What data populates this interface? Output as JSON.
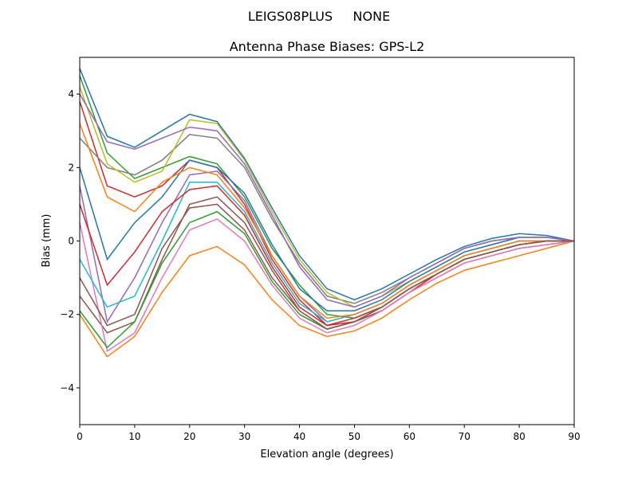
{
  "chart_data": {
    "type": "line",
    "suptitle": "LEIGS08PLUS     NONE",
    "title": "Antenna Phase Biases: GPS-L2",
    "xlabel": "Elevation angle (degrees)",
    "ylabel": "Bias (mm)",
    "xlim": [
      0,
      90
    ],
    "ylim": [
      -5,
      5
    ],
    "xticks": [
      0,
      10,
      20,
      30,
      40,
      50,
      60,
      70,
      80,
      90
    ],
    "yticks": [
      -4,
      -2,
      0,
      2,
      4
    ],
    "ytick_labels": [
      "−4",
      "−2",
      "0",
      "2",
      "4"
    ],
    "grid": false,
    "x": [
      0,
      5,
      10,
      15,
      20,
      25,
      30,
      35,
      40,
      45,
      50,
      55,
      60,
      65,
      70,
      75,
      80,
      85,
      90
    ],
    "colors": [
      "#1f77b4",
      "#ff7f0e",
      "#2ca02c",
      "#d62728",
      "#9467bd",
      "#8c564b",
      "#e377c2",
      "#7f7f7f",
      "#bcbd22",
      "#17becf"
    ],
    "series": [
      {
        "values": [
          4.7,
          2.85,
          2.55,
          3.0,
          3.45,
          3.25,
          2.25,
          0.9,
          -0.4,
          -1.3,
          -1.6,
          -1.3,
          -0.9,
          -0.5,
          -0.15,
          0.07,
          0.2,
          0.15,
          0
        ]
      },
      {
        "values": [
          -2,
          -3.15,
          -2.6,
          -1.4,
          -0.4,
          -0.15,
          -0.65,
          -1.6,
          -2.3,
          -2.6,
          -2.45,
          -2.1,
          -1.6,
          -1.15,
          -0.8,
          -0.6,
          -0.4,
          -0.2,
          0
        ]
      },
      {
        "values": [
          4.5,
          2.4,
          1.7,
          2.0,
          2.3,
          2.1,
          1.2,
          -0.2,
          -1.2,
          -2.0,
          -2.1,
          -1.8,
          -1.3,
          -0.9,
          -0.5,
          -0.3,
          -0.1,
          0.0,
          0
        ]
      },
      {
        "values": [
          3.8,
          1.5,
          1.2,
          1.5,
          2.2,
          2.0,
          1.0,
          -0.5,
          -1.6,
          -2.3,
          -2.2,
          -1.9,
          -1.4,
          -0.9,
          -0.5,
          -0.3,
          -0.1,
          0,
          0
        ]
      },
      {
        "values": [
          1.5,
          -2.2,
          -1.0,
          0.5,
          1.8,
          1.9,
          1.1,
          -0.4,
          -1.5,
          -2.2,
          -2.0,
          -1.7,
          -1.2,
          -0.8,
          -0.4,
          -0.2,
          0,
          0,
          0
        ]
      },
      {
        "values": [
          -1.5,
          -2.5,
          -2.2,
          -0.5,
          1.0,
          1.2,
          0.5,
          -0.8,
          -1.9,
          -2.4,
          -2.2,
          -1.9,
          -1.4,
          -1.0,
          -0.6,
          -0.4,
          -0.2,
          -0.1,
          0
        ]
      },
      {
        "values": [
          0.5,
          -3.0,
          -2.5,
          -1.0,
          0.3,
          0.6,
          0.0,
          -1.2,
          -2.1,
          -2.5,
          -2.3,
          -1.9,
          -1.4,
          -1.0,
          -0.6,
          -0.4,
          -0.2,
          -0.1,
          0
        ]
      },
      {
        "values": [
          2.8,
          2.0,
          1.8,
          2.2,
          2.9,
          2.8,
          2.0,
          0.6,
          -0.6,
          -1.5,
          -1.7,
          -1.4,
          -1.0,
          -0.6,
          -0.2,
          0.0,
          0.1,
          0.1,
          0
        ]
      },
      {
        "values": [
          4.2,
          2.1,
          1.6,
          1.9,
          3.3,
          3.2,
          2.2,
          0.8,
          -0.5,
          -1.4,
          -1.8,
          -1.5,
          -1.1,
          -0.7,
          -0.3,
          -0.1,
          0.1,
          0.1,
          0
        ]
      },
      {
        "values": [
          -0.5,
          -1.8,
          -1.5,
          0.0,
          1.6,
          1.6,
          0.8,
          -0.6,
          -1.7,
          -2.2,
          -2.0,
          -1.7,
          -1.2,
          -0.8,
          -0.4,
          -0.2,
          0,
          0,
          0
        ]
      },
      {
        "values": [
          2.0,
          -0.5,
          0.5,
          1.2,
          2.2,
          2.0,
          1.3,
          -0.1,
          -1.3,
          -1.9,
          -1.9,
          -1.6,
          -1.1,
          -0.7,
          -0.3,
          -0.1,
          0.1,
          0.1,
          0
        ]
      },
      {
        "values": [
          3.2,
          1.2,
          0.8,
          1.6,
          2.0,
          1.8,
          0.9,
          -0.4,
          -1.5,
          -2.1,
          -2.0,
          -1.7,
          -1.2,
          -0.8,
          -0.4,
          -0.2,
          0,
          0,
          0
        ]
      },
      {
        "values": [
          -1.9,
          -2.9,
          -2.2,
          -0.6,
          0.5,
          0.8,
          0.2,
          -1.1,
          -2.0,
          -2.4,
          -2.2,
          -1.8,
          -1.3,
          -0.9,
          -0.5,
          -0.3,
          -0.1,
          0,
          0
        ]
      },
      {
        "values": [
          1.0,
          -1.2,
          -0.3,
          0.8,
          1.4,
          1.5,
          0.7,
          -0.7,
          -1.8,
          -2.3,
          -2.1,
          -1.8,
          -1.3,
          -0.9,
          -0.5,
          -0.3,
          -0.1,
          0,
          0
        ]
      },
      {
        "values": [
          4.0,
          2.7,
          2.5,
          2.8,
          3.1,
          3.0,
          2.1,
          0.7,
          -0.7,
          -1.6,
          -1.8,
          -1.5,
          -1.0,
          -0.6,
          -0.2,
          0,
          0.1,
          0.1,
          0
        ]
      },
      {
        "values": [
          -1.0,
          -2.3,
          -2.0,
          -0.2,
          0.9,
          1.0,
          0.3,
          -1.0,
          -1.9,
          -2.4,
          -2.2,
          -1.8,
          -1.3,
          -0.9,
          -0.5,
          -0.3,
          -0.1,
          0,
          0
        ]
      }
    ]
  }
}
